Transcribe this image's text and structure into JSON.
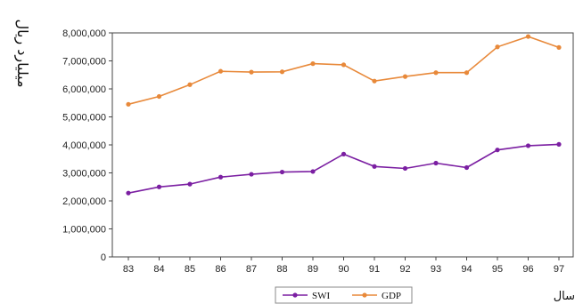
{
  "chart_data": {
    "type": "line",
    "title": "",
    "xlabel": "سال",
    "ylabel": "میلیارد ریال",
    "categories": [
      "83",
      "84",
      "85",
      "86",
      "87",
      "88",
      "89",
      "90",
      "91",
      "92",
      "93",
      "94",
      "95",
      "96",
      "97"
    ],
    "ylim": [
      0,
      8000000
    ],
    "yticks": [
      0,
      1000000,
      2000000,
      3000000,
      4000000,
      5000000,
      6000000,
      7000000,
      8000000
    ],
    "ytick_labels": [
      "0",
      "1,000,000",
      "2,000,000",
      "3,000,000",
      "4,000,000",
      "5,000,000",
      "6,000,000",
      "7,000,000",
      "8,000,000"
    ],
    "grid": false,
    "legend_position": "bottom",
    "series": [
      {
        "name": "SWI",
        "color": "#7b1fa2",
        "values": [
          2280000,
          2500000,
          2600000,
          2850000,
          2950000,
          3030000,
          3050000,
          3670000,
          3230000,
          3160000,
          3350000,
          3190000,
          3820000,
          3970000,
          4020000
        ]
      },
      {
        "name": "GDP",
        "color": "#e8893a",
        "values": [
          5450000,
          5730000,
          6150000,
          6630000,
          6600000,
          6610000,
          6900000,
          6860000,
          6280000,
          6440000,
          6580000,
          6580000,
          7500000,
          7870000,
          7480000
        ]
      }
    ]
  }
}
